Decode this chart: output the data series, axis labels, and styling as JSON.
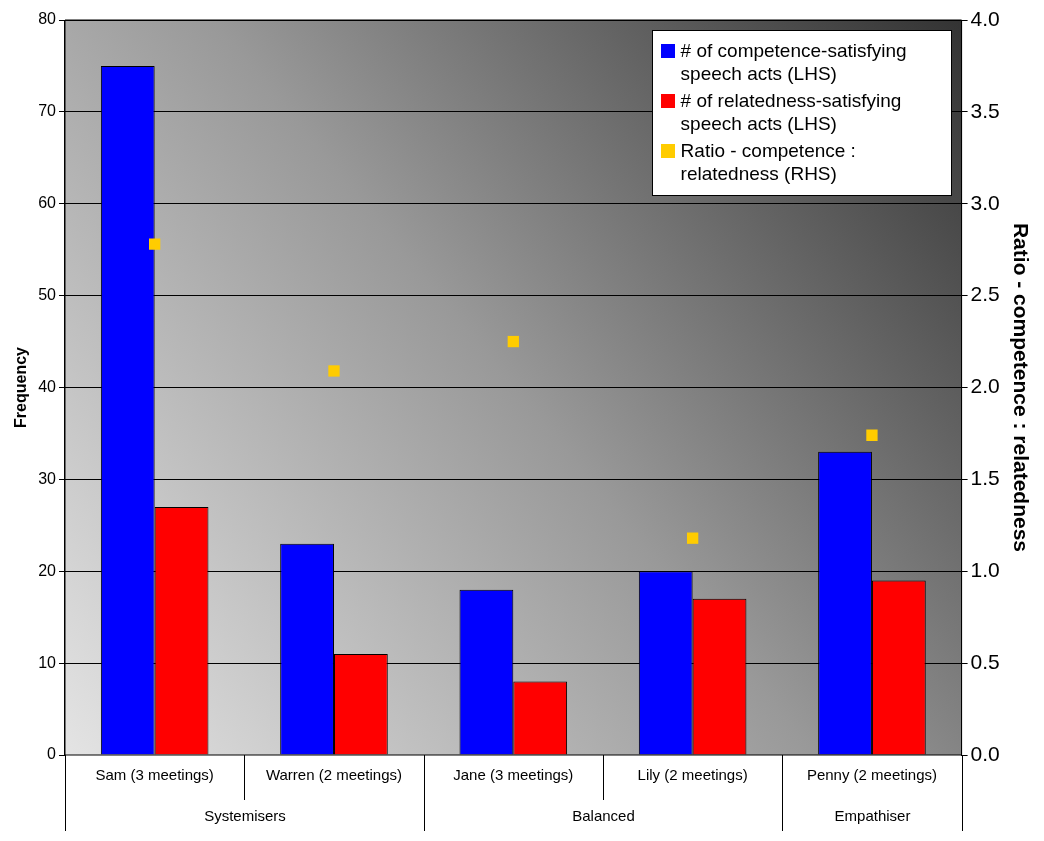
{
  "chart_data": {
    "type": "bar",
    "ylabel": "Frequency",
    "y2label": "Ratio - competence : relatedness",
    "categories": [
      "Sam (3 meetings)",
      "Warren (2 meetings)",
      "Jane (3 meetings)",
      "Lily (2 meetings)",
      "Penny (2 meetings)"
    ],
    "series": [
      {
        "name": "# of competence-satisfying speech acts (LHS)",
        "color": "#0000ff",
        "values": [
          75,
          23,
          18,
          20,
          33
        ]
      },
      {
        "name": "# of relatedness-satisfying speech acts (LHS)",
        "color": "#ff0000",
        "values": [
          27,
          11,
          8,
          17,
          19
        ]
      },
      {
        "name": "Ratio - competence : relatedness (RHS)",
        "type": "scatter",
        "axis": "y2",
        "color": "#ffcc00",
        "values": [
          2.78,
          2.09,
          2.25,
          1.18,
          1.74
        ]
      }
    ],
    "annotations": [
      "Systemisers",
      "Balanced",
      "Empathiser"
    ],
    "ylim": [
      0,
      80
    ],
    "yticks": [
      0,
      10,
      20,
      30,
      40,
      50,
      60,
      70,
      80
    ],
    "y2lim": [
      0,
      4
    ],
    "y2ticks": [
      {
        "value": 0,
        "label": "0.0"
      },
      {
        "value": 0.5,
        "label": "0.5"
      },
      {
        "value": 1,
        "label": "1.0"
      },
      {
        "value": 1.5,
        "label": "1.5"
      },
      {
        "value": 2,
        "label": "2.0"
      },
      {
        "value": 2.5,
        "label": "2.5"
      },
      {
        "value": 3,
        "label": "3.0"
      },
      {
        "value": 3.5,
        "label": "3.5"
      },
      {
        "value": 4,
        "label": "4.0"
      }
    ],
    "grid": "y",
    "legend": "top right",
    "marker": "square"
  }
}
